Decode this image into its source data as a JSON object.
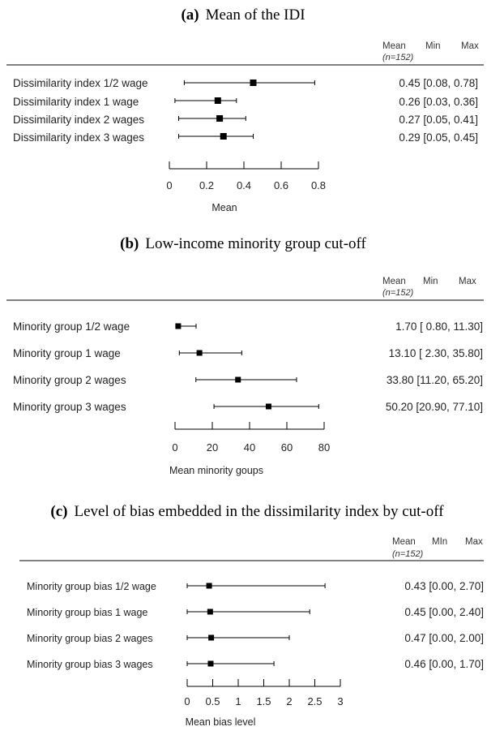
{
  "header": {
    "mean": "Mean",
    "min": "Min",
    "max": "Max",
    "n": "(n=152)"
  },
  "chart_data": [
    {
      "type": "forest",
      "panel_letter": "(a)",
      "title": "Mean of the IDI",
      "header_min_label": "Min",
      "xlabel": "Mean",
      "xlim": [
        0,
        0.8
      ],
      "ticks": [
        "0",
        "0.2",
        "0.4",
        "0.6",
        "0.8"
      ],
      "tick_values": [
        0,
        0.2,
        0.4,
        0.6,
        0.8
      ],
      "rows": [
        {
          "label": "Dissimilarity index 1/2 wage",
          "mean": 0.45,
          "min": 0.08,
          "max": 0.78,
          "text": "0.45 [0.08, 0.78]"
        },
        {
          "label": "Dissimilarity index 1 wage",
          "mean": 0.26,
          "min": 0.03,
          "max": 0.36,
          "text": "0.26 [0.03, 0.36]"
        },
        {
          "label": "Dissimilarity index 2 wages",
          "mean": 0.27,
          "min": 0.05,
          "max": 0.41,
          "text": "0.27 [0.05, 0.41]"
        },
        {
          "label": "Dissimilarity index 3 wages",
          "mean": 0.29,
          "min": 0.05,
          "max": 0.45,
          "text": "0.29 [0.05, 0.45]"
        }
      ]
    },
    {
      "type": "forest",
      "panel_letter": "(b)",
      "title": "Low-income minority group cut-off",
      "header_min_label": "Min",
      "xlabel": "Mean minority goups",
      "xlim": [
        0,
        80
      ],
      "ticks": [
        "0",
        "20",
        "40",
        "60",
        "80"
      ],
      "tick_values": [
        0,
        20,
        40,
        60,
        80
      ],
      "rows": [
        {
          "label": "Minority group 1/2 wage",
          "mean": 1.7,
          "min": 0.8,
          "max": 11.3,
          "text": "1.70 [ 0.80, 11.30]"
        },
        {
          "label": "Minority group 1 wage",
          "mean": 13.1,
          "min": 2.3,
          "max": 35.8,
          "text": "13.10 [ 2.30, 35.80]"
        },
        {
          "label": "Minority group 2 wages",
          "mean": 33.8,
          "min": 11.2,
          "max": 65.2,
          "text": "33.80 [11.20, 65.20]"
        },
        {
          "label": "Minority group 3 wages",
          "mean": 50.2,
          "min": 20.9,
          "max": 77.1,
          "text": "50.20 [20.90, 77.10]"
        }
      ]
    },
    {
      "type": "forest",
      "panel_letter": "(c)",
      "title": "Level of bias embedded in the dissimilarity index by cut-off",
      "header_min_label": "MIn",
      "xlabel": "Mean bias level",
      "xlim": [
        0,
        3
      ],
      "ticks": [
        "0",
        "0.5",
        "1",
        "1.5",
        "2",
        "2.5",
        "3"
      ],
      "tick_values": [
        0,
        0.5,
        1,
        1.5,
        2,
        2.5,
        3
      ],
      "rows": [
        {
          "label": "Minority group bias 1/2 wage",
          "mean": 0.43,
          "min": 0.0,
          "max": 2.7,
          "text": "0.43 [0.00, 2.70]"
        },
        {
          "label": "Minority group bias 1 wage",
          "mean": 0.45,
          "min": 0.0,
          "max": 2.4,
          "text": "0.45 [0.00, 2.40]"
        },
        {
          "label": "Minority group bias 2 wages",
          "mean": 0.47,
          "min": 0.0,
          "max": 2.0,
          "text": "0.47 [0.00, 2.00]"
        },
        {
          "label": "Minority group bias 3 wages",
          "mean": 0.46,
          "min": 0.0,
          "max": 1.7,
          "text": "0.46 [0.00, 1.70]"
        }
      ]
    }
  ]
}
